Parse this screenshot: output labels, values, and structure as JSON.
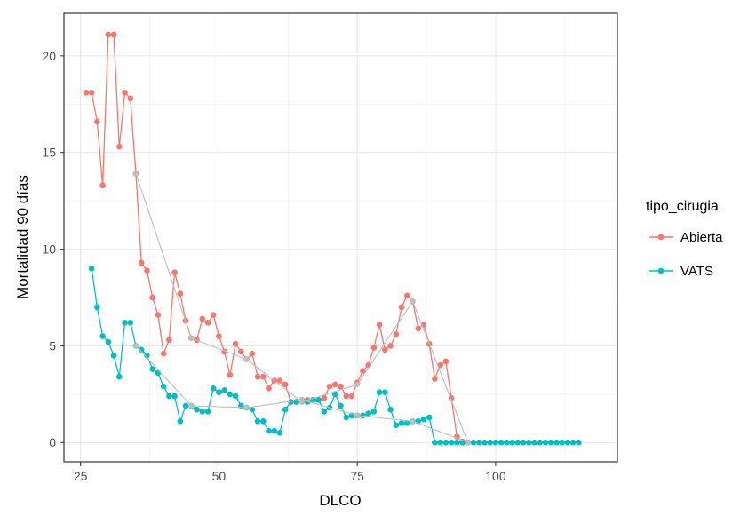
{
  "chart_data": {
    "type": "line",
    "xlabel": "DLCO",
    "ylabel": "Mortalidad 90 días",
    "xlim": [
      22,
      122
    ],
    "ylim": [
      -1,
      22.2
    ],
    "x_ticks": [
      25,
      50,
      75,
      100
    ],
    "y_ticks": [
      0,
      5,
      10,
      15,
      20
    ],
    "grid": true,
    "legend": {
      "title": "tipo_cirugia",
      "position": "right"
    },
    "series": [
      {
        "name": "Abierta",
        "color": "#F8766D",
        "points": [
          [
            26,
            18.1
          ],
          [
            27,
            18.1
          ],
          [
            28,
            16.6
          ],
          [
            29,
            13.3
          ],
          [
            30,
            21.1
          ],
          [
            31,
            21.1
          ],
          [
            32,
            15.3
          ],
          [
            33,
            18.1
          ],
          [
            34,
            17.8
          ],
          [
            35,
            13.9
          ],
          [
            36,
            9.3
          ],
          [
            37,
            8.9
          ],
          [
            38,
            7.5
          ],
          [
            39,
            6.6
          ],
          [
            40,
            4.6
          ],
          [
            41,
            5.3
          ],
          [
            42,
            8.8
          ],
          [
            43,
            7.7
          ],
          [
            44,
            6.3
          ],
          [
            45,
            5.4
          ],
          [
            46,
            5.3
          ],
          [
            47,
            6.4
          ],
          [
            48,
            6.2
          ],
          [
            49,
            6.6
          ],
          [
            50,
            5.5
          ],
          [
            51,
            4.7
          ],
          [
            52,
            3.5
          ],
          [
            53,
            5.1
          ],
          [
            54,
            4.7
          ],
          [
            55,
            4.3
          ],
          [
            56,
            4.6
          ],
          [
            57,
            3.4
          ],
          [
            58,
            3.4
          ],
          [
            59,
            2.8
          ],
          [
            60,
            3.2
          ],
          [
            61,
            3.2
          ],
          [
            62,
            3.0
          ],
          [
            63,
            2.1
          ],
          [
            64,
            2.1
          ],
          [
            65,
            2.1
          ],
          [
            66,
            2.2
          ],
          [
            67,
            2.2
          ],
          [
            68,
            2.2
          ],
          [
            69,
            2.3
          ],
          [
            70,
            2.9
          ],
          [
            71,
            3.0
          ],
          [
            72,
            2.9
          ],
          [
            73,
            2.4
          ],
          [
            74,
            2.4
          ],
          [
            75,
            3.1
          ],
          [
            76,
            3.7
          ],
          [
            77,
            4.0
          ],
          [
            78,
            4.9
          ],
          [
            79,
            6.1
          ],
          [
            80,
            4.8
          ],
          [
            81,
            5.0
          ],
          [
            82,
            5.6
          ],
          [
            83,
            7.0
          ],
          [
            84,
            7.6
          ],
          [
            85,
            7.3
          ],
          [
            86,
            5.9
          ],
          [
            87,
            6.1
          ],
          [
            88,
            5.1
          ],
          [
            89,
            3.3
          ],
          [
            90,
            4.0
          ],
          [
            91,
            4.2
          ],
          [
            92,
            2.3
          ],
          [
            93,
            0.3
          ],
          [
            94,
            0.05
          ],
          [
            95,
            0
          ]
        ]
      },
      {
        "name": "VATS",
        "color": "#00BFC4",
        "points": [
          [
            27,
            9.0
          ],
          [
            28,
            7.0
          ],
          [
            29,
            5.5
          ],
          [
            30,
            5.2
          ],
          [
            31,
            4.5
          ],
          [
            32,
            3.4
          ],
          [
            33,
            6.2
          ],
          [
            34,
            6.2
          ],
          [
            35,
            5.0
          ],
          [
            36,
            4.8
          ],
          [
            37,
            4.5
          ],
          [
            38,
            3.8
          ],
          [
            39,
            3.6
          ],
          [
            40,
            2.9
          ],
          [
            41,
            2.4
          ],
          [
            42,
            2.4
          ],
          [
            43,
            1.1
          ],
          [
            44,
            1.9
          ],
          [
            45,
            1.9
          ],
          [
            46,
            1.7
          ],
          [
            47,
            1.6
          ],
          [
            48,
            1.6
          ],
          [
            49,
            2.8
          ],
          [
            50,
            2.6
          ],
          [
            51,
            2.7
          ],
          [
            52,
            2.5
          ],
          [
            53,
            2.4
          ],
          [
            54,
            1.9
          ],
          [
            55,
            1.8
          ],
          [
            56,
            1.7
          ],
          [
            57,
            1.1
          ],
          [
            58,
            1.1
          ],
          [
            59,
            0.6
          ],
          [
            60,
            0.6
          ],
          [
            61,
            0.5
          ],
          [
            62,
            1.7
          ],
          [
            63,
            2.1
          ],
          [
            64,
            2.1
          ],
          [
            65,
            2.2
          ],
          [
            66,
            2.1
          ],
          [
            67,
            2.2
          ],
          [
            68,
            2.2
          ],
          [
            69,
            1.6
          ],
          [
            70,
            1.8
          ],
          [
            71,
            2.5
          ],
          [
            72,
            1.9
          ],
          [
            73,
            1.3
          ],
          [
            74,
            1.4
          ],
          [
            75,
            1.4
          ],
          [
            76,
            1.4
          ],
          [
            77,
            1.5
          ],
          [
            78,
            1.6
          ],
          [
            79,
            2.6
          ],
          [
            80,
            2.6
          ],
          [
            81,
            1.7
          ],
          [
            82,
            0.9
          ],
          [
            83,
            1.0
          ],
          [
            84,
            1.0
          ],
          [
            85,
            1.1
          ],
          [
            86,
            1.1
          ],
          [
            87,
            1.2
          ],
          [
            88,
            1.3
          ],
          [
            89,
            0
          ],
          [
            90,
            0
          ],
          [
            91,
            0
          ],
          [
            92,
            0
          ],
          [
            93,
            0
          ],
          [
            94,
            0
          ],
          [
            95,
            0
          ],
          [
            96,
            0
          ],
          [
            97,
            0
          ],
          [
            98,
            0
          ],
          [
            99,
            0
          ],
          [
            100,
            0
          ],
          [
            101,
            0
          ],
          [
            102,
            0
          ],
          [
            103,
            0
          ],
          [
            104,
            0
          ],
          [
            105,
            0
          ],
          [
            106,
            0
          ],
          [
            107,
            0
          ],
          [
            108,
            0
          ],
          [
            109,
            0
          ],
          [
            110,
            0
          ],
          [
            111,
            0
          ],
          [
            112,
            0
          ],
          [
            113,
            0
          ],
          [
            114,
            0
          ],
          [
            115,
            0
          ]
        ]
      },
      {
        "color": "#BEBEBE",
        "points": [
          [
            35,
            13.9
          ],
          [
            45,
            5.4
          ],
          [
            55,
            4.3
          ],
          [
            65,
            2.1
          ],
          [
            75,
            3.0
          ],
          [
            85,
            7.3
          ],
          [
            95,
            0
          ]
        ]
      },
      {
        "color": "#BEBEBE",
        "points": [
          [
            35,
            5.0
          ],
          [
            45,
            1.9
          ],
          [
            55,
            1.8
          ],
          [
            65,
            2.2
          ],
          [
            75,
            1.4
          ],
          [
            85,
            1.1
          ],
          [
            95,
            0
          ]
        ]
      }
    ]
  }
}
